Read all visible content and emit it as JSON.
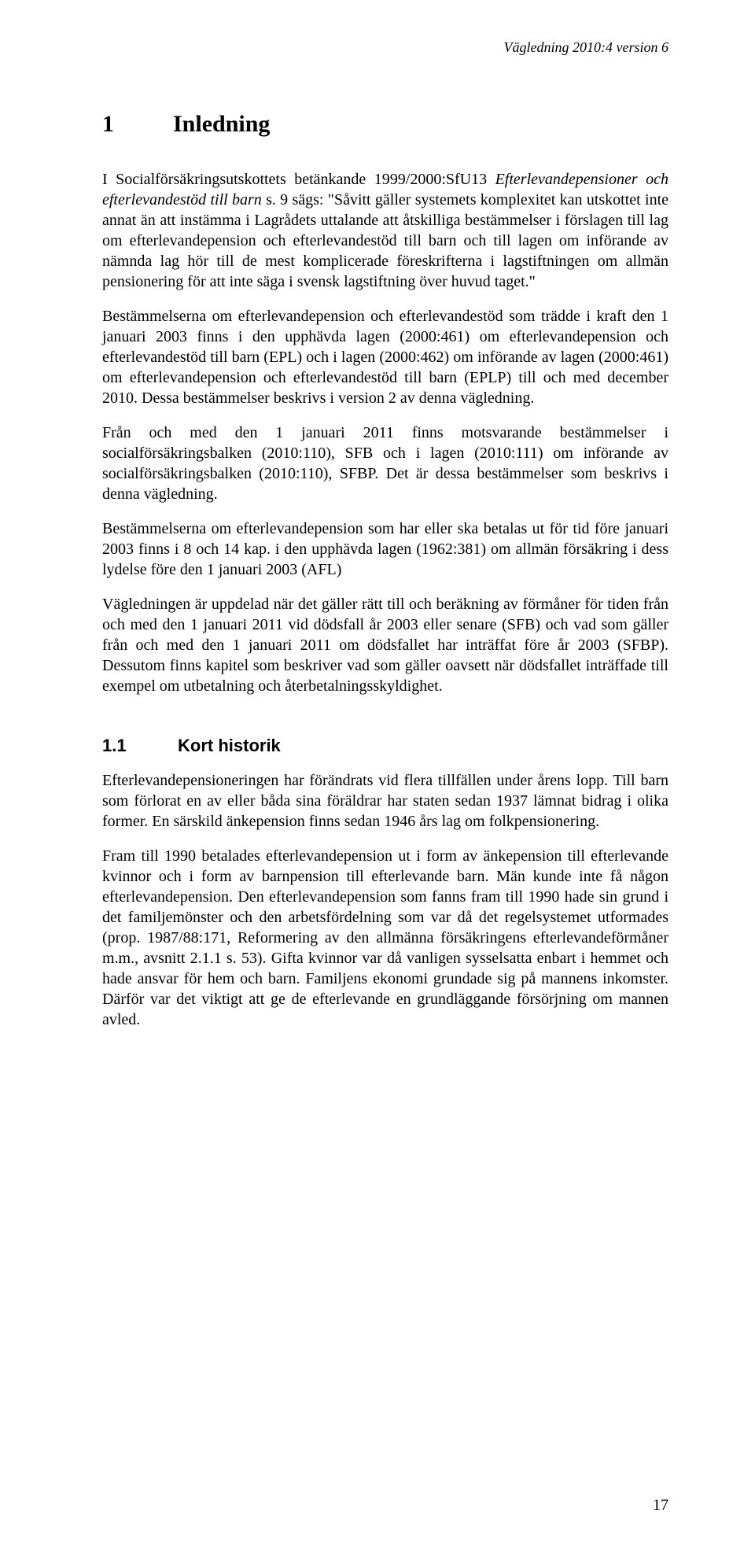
{
  "document": {
    "header": "Vägledning 2010:4 version 6",
    "page_number": "17",
    "section1": {
      "number": "1",
      "title": "Inledning",
      "intro_leadin": "I Socialförsäkringsutskottets betänkande 1999/2000:SfU13 ",
      "intro_italic": "Efterlevandepensioner och efterlevandestöd till barn",
      "intro_after_italic": " s. 9 sägs: \"Såvitt gäller systemets komplexitet kan utskottet inte annat än att instämma i Lagrådets uttalande att åtskilliga bestämmelser i förslagen till lag om efterlevandepension och efterlevandestöd till barn och till lagen om införande av nämnda lag hör till de mest komplicerade föreskrifterna i lagstiftningen om allmän pensionering för att inte säga i svensk lagstiftning över huvud taget.\"",
      "p2": "Bestämmelserna om efterlevandepension och efterlevandestöd som trädde i kraft den 1 januari 2003 finns i den upphävda lagen (2000:461) om efterlevandepension och efterlevandestöd till barn (EPL) och i lagen (2000:462) om införande av lagen (2000:461) om efterlevandepension och efterlevandestöd till barn (EPLP) till och med december 2010. Dessa bestämmelser beskrivs i version 2 av denna vägledning.",
      "p3": "Från och med den 1 januari 2011 finns motsvarande bestämmelser i socialförsäkringsbalken (2010:110), SFB och i lagen (2010:111) om införande av socialförsäkringsbalken (2010:110), SFBP. Det är dessa bestämmelser som beskrivs i denna vägledning.",
      "p4": "Bestämmelserna om efterlevandepension som har eller ska betalas ut för tid före januari 2003 finns i 8 och 14 kap. i den upphävda lagen (1962:381) om allmän försäkring i dess lydelse före den 1 januari 2003 (AFL)",
      "p5": "Vägledningen är uppdelad när det gäller rätt till och beräkning av förmåner för tiden från och med den 1 januari 2011 vid dödsfall år 2003 eller senare (SFB) och vad som gäller från och med den 1 januari 2011 om dödsfallet har inträffat före år 2003 (SFBP). Dessutom finns kapitel som beskriver vad som gäller oavsett när dödsfallet inträffade till exempel om utbetalning och återbetalningsskyldighet."
    },
    "section1_1": {
      "number": "1.1",
      "title": "Kort historik",
      "p1": "Efterlevandepensioneringen har förändrats vid flera tillfällen under årens lopp. Till barn som förlorat en av eller båda sina föräldrar har staten sedan 1937 lämnat bidrag i olika former. En särskild änkepension finns sedan 1946 års lag om folkpensionering.",
      "p2": "Fram till 1990 betalades efterlevandepension ut i form av änkepension till efterlevande kvinnor och i form av barnpension till efterlevande barn. Män kunde inte få någon efterlevandepension. Den efterlevandepension som fanns fram till 1990 hade sin grund i det familjemönster och den arbetsfördelning som var då det regelsystemet utformades (prop. 1987/88:171, Reformering av den allmänna försäkringens efterlevandeförmåner m.m., avsnitt 2.1.1 s. 53). Gifta kvinnor var då vanligen sysselsatta enbart i hemmet och hade ansvar för hem och barn. Familjens ekonomi grundade sig på mannens inkomster. Därför var det viktigt att ge de efterlevande en grundläggande försörjning om mannen avled."
    }
  }
}
